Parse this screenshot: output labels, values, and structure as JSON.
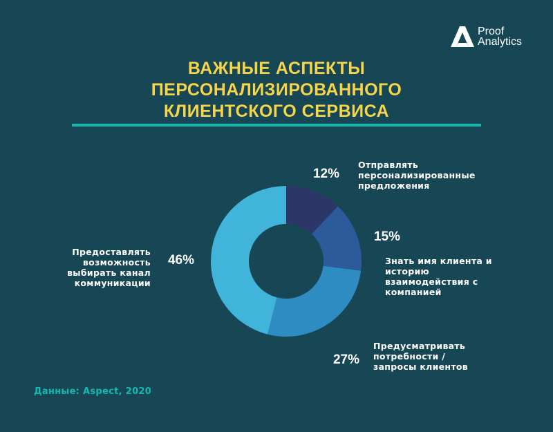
{
  "brand": {
    "line1": "Proof",
    "line2": "Analytics"
  },
  "title_lines": [
    "ВАЖНЫЕ АСПЕКТЫ",
    "ПЕРСОНАЛИЗИРОВАННОГО",
    "КЛИЕНТСКОГО СЕРВИСА"
  ],
  "source": "Данные: Aspect, 2020",
  "colors": {
    "background": "#174655",
    "title": "#f6d54a",
    "accent": "#16b8b2",
    "text": "#ffffff"
  },
  "chart_data": {
    "type": "pie",
    "donut": true,
    "title": "ВАЖНЫЕ АСПЕКТЫ ПЕРСОНАЛИЗИРОВАННОГО КЛИЕНТСКОГО СЕРВИСА",
    "unit": "%",
    "slices": [
      {
        "label": "Отправлять персонализированные предложения",
        "lines": [
          "Отправлять",
          "персонализированные",
          "предложения"
        ],
        "value": 12,
        "display": "12%",
        "color": "#2c3668"
      },
      {
        "label": "Знать имя клиента и историю взаимодействия с компанией",
        "lines": [
          "Знать имя клиента и",
          "историю",
          "взаимодействия с",
          "компанией"
        ],
        "value": 15,
        "display": "15%",
        "color": "#2d5a9a"
      },
      {
        "label": "Предусматривать потребности / запросы клиентов",
        "lines": [
          "Предусматривать",
          "потребности /",
          "запросы клиентов"
        ],
        "value": 27,
        "display": "27%",
        "color": "#2f8cc2"
      },
      {
        "label": "Предоставлять возможность выбирать канал коммуникации",
        "lines": [
          "Предоставлять",
          "возможность",
          "выбирать канал",
          "коммуникации"
        ],
        "value": 46,
        "display": "46%",
        "color": "#41b5d9"
      }
    ]
  }
}
